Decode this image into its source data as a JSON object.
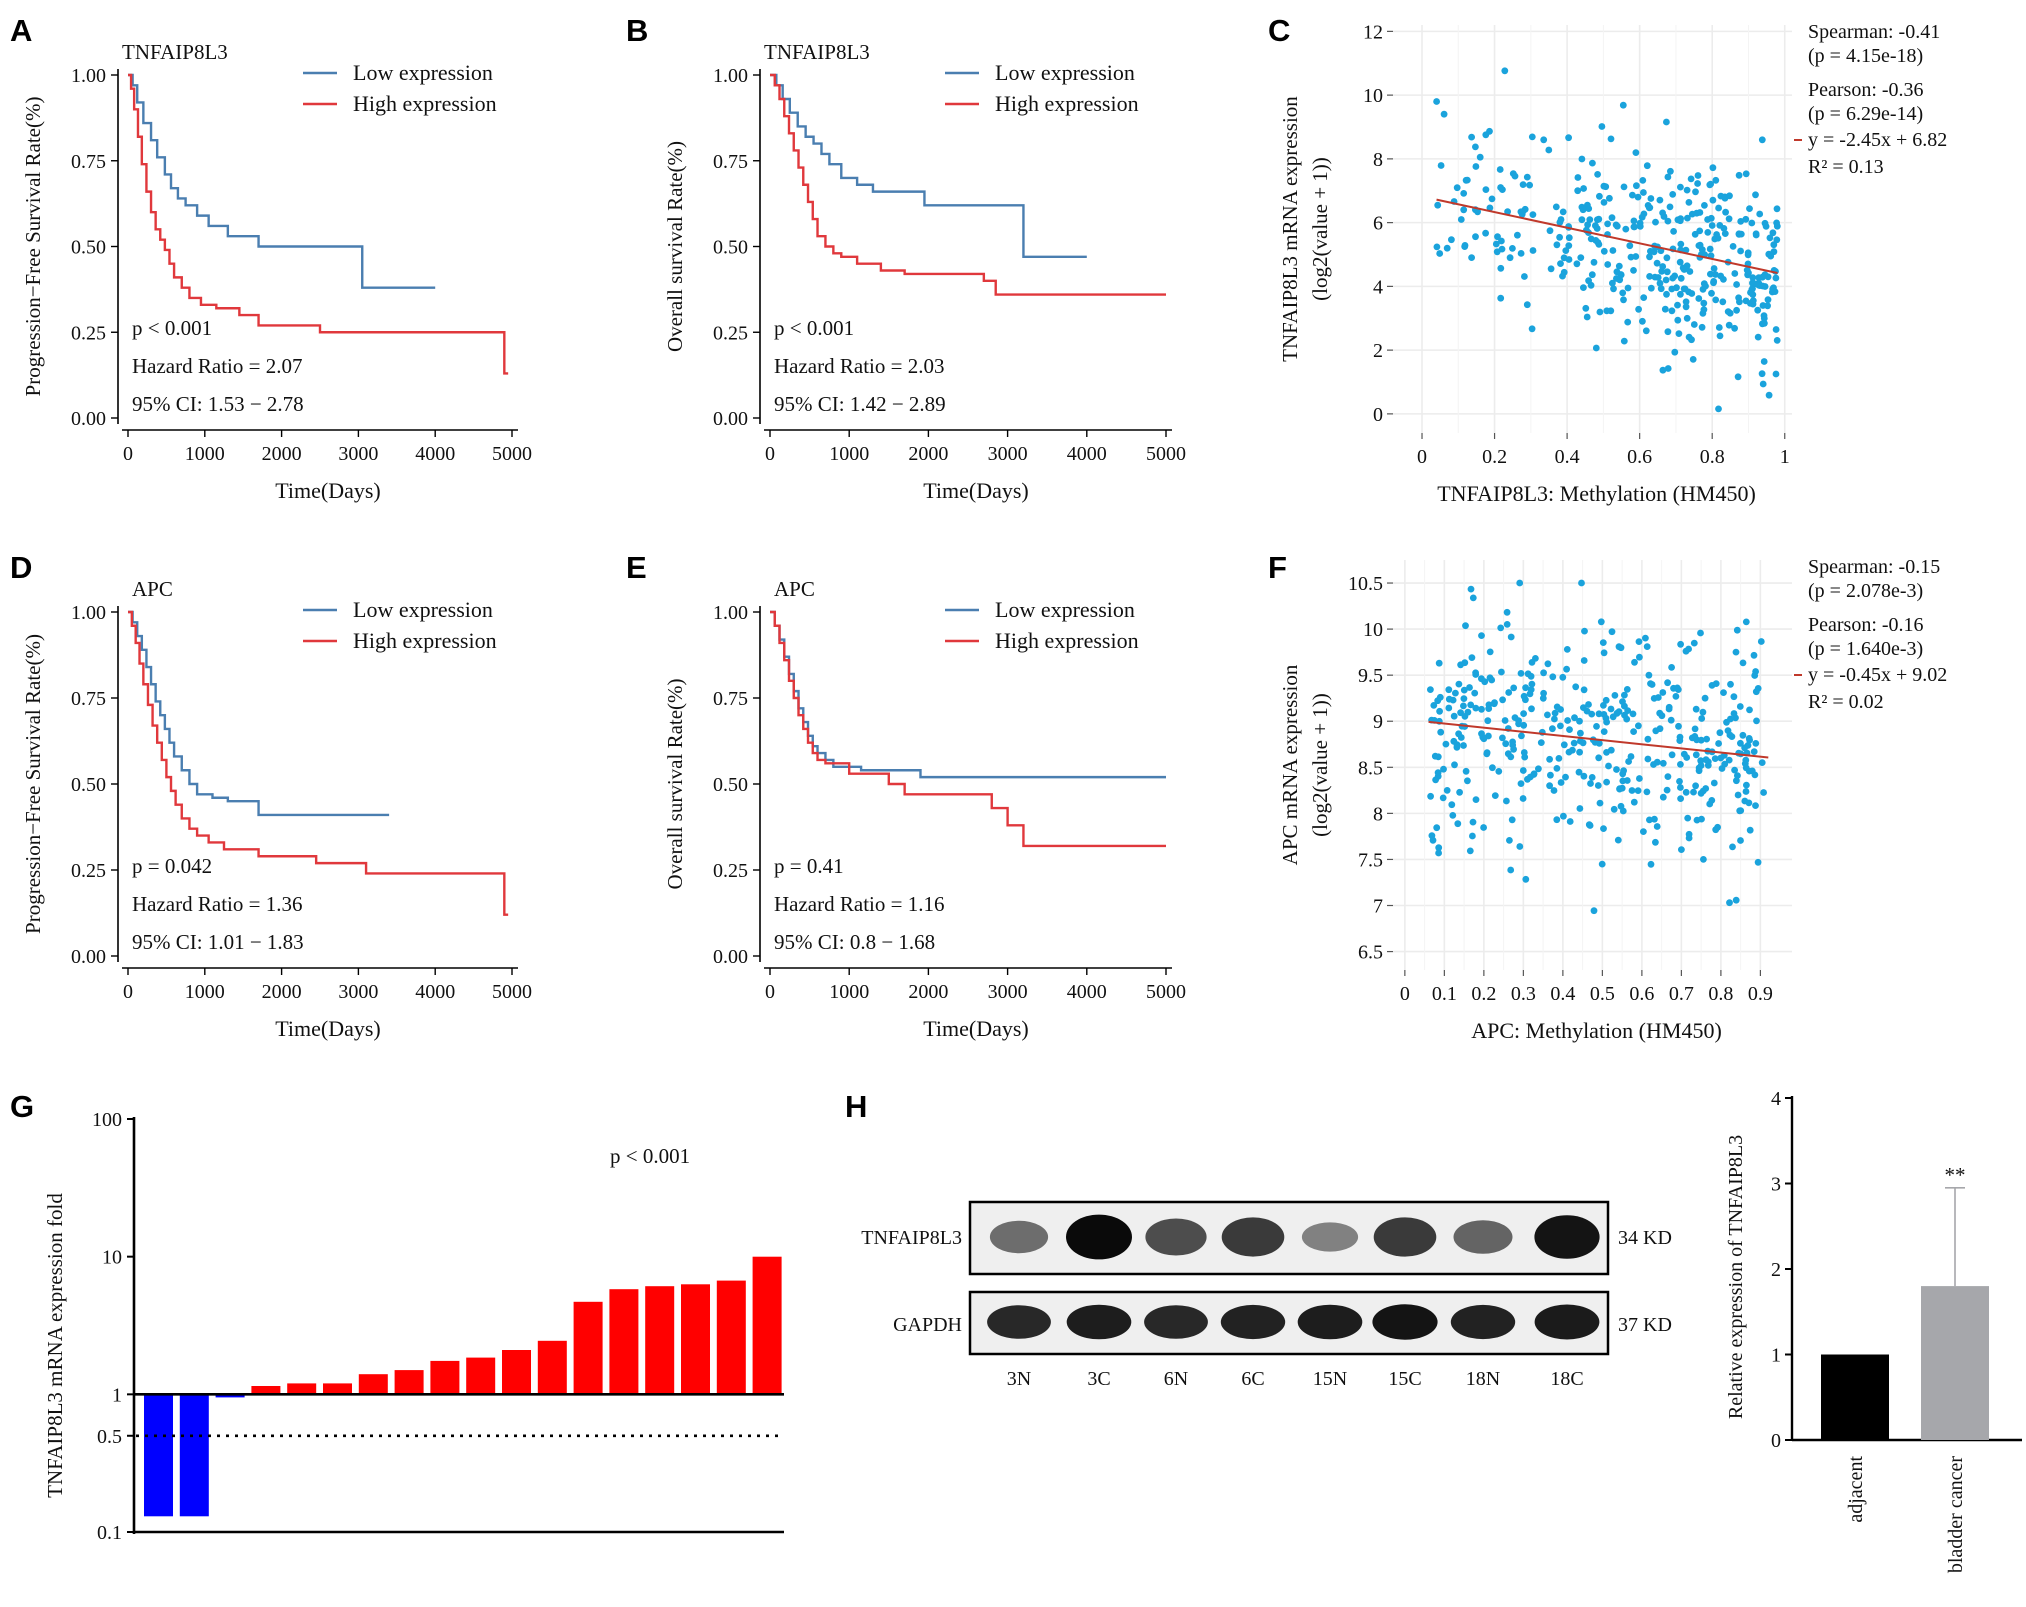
{
  "figure": {
    "panel_labels": [
      "A",
      "B",
      "C",
      "D",
      "E",
      "F",
      "G",
      "H"
    ],
    "legend_low": "Low expression",
    "legend_high": "High expression",
    "colors": {
      "low": "#4a7eb0",
      "high": "#e0383c",
      "scatter": "#1aa3dc",
      "fit": "#c0392b",
      "up_bar": "#ff0000",
      "down_bar": "#0000ff"
    }
  },
  "chart_data": [
    {
      "id": "A",
      "type": "line",
      "gene": "TNFAIP8L3",
      "xlabel": "Time(Days)",
      "ylabel": "Progression−Free Survival Rate(%)",
      "xlim": [
        0,
        5000
      ],
      "ylim": [
        0,
        1
      ],
      "xticks": [
        "0",
        "1000",
        "2000",
        "3000",
        "4000",
        "5000"
      ],
      "yticks": [
        "0.00",
        "0.25",
        "0.50",
        "0.75",
        "1.00"
      ],
      "stats": [
        "p < 0.001",
        "Hazard Ratio = 2.07",
        "95% CI: 1.53 − 2.78"
      ],
      "series": [
        {
          "name": "Low expression",
          "x": [
            0,
            60,
            120,
            200,
            300,
            380,
            480,
            560,
            650,
            750,
            900,
            1050,
            1300,
            1700,
            3050,
            3050,
            4000
          ],
          "y": [
            1.0,
            0.97,
            0.92,
            0.86,
            0.81,
            0.76,
            0.71,
            0.67,
            0.64,
            0.62,
            0.59,
            0.56,
            0.53,
            0.5,
            0.5,
            0.38,
            0.38
          ]
        },
        {
          "name": "High expression",
          "x": [
            0,
            40,
            80,
            130,
            180,
            240,
            300,
            360,
            420,
            480,
            540,
            600,
            700,
            800,
            950,
            1150,
            1450,
            1700,
            2500,
            3000,
            4900,
            4900,
            4950
          ],
          "y": [
            1.0,
            0.96,
            0.9,
            0.82,
            0.74,
            0.66,
            0.6,
            0.55,
            0.52,
            0.49,
            0.45,
            0.41,
            0.38,
            0.35,
            0.33,
            0.32,
            0.3,
            0.27,
            0.25,
            0.25,
            0.25,
            0.13,
            0.13
          ]
        }
      ]
    },
    {
      "id": "B",
      "type": "line",
      "gene": "TNFAIP8L3",
      "xlabel": "Time(Days)",
      "ylabel": "Overall survival Rate(%)",
      "xlim": [
        0,
        5000
      ],
      "ylim": [
        0,
        1
      ],
      "xticks": [
        "0",
        "1000",
        "2000",
        "3000",
        "4000",
        "5000"
      ],
      "yticks": [
        "0.00",
        "0.25",
        "0.50",
        "0.75",
        "1.00"
      ],
      "stats": [
        "p < 0.001",
        "Hazard Ratio = 2.03",
        "95% CI: 1.42 − 2.89"
      ],
      "series": [
        {
          "name": "Low expression",
          "x": [
            0,
            80,
            160,
            250,
            350,
            450,
            550,
            650,
            750,
            900,
            1100,
            1300,
            1950,
            3200,
            3200,
            4000
          ],
          "y": [
            1.0,
            0.97,
            0.93,
            0.89,
            0.85,
            0.82,
            0.8,
            0.77,
            0.74,
            0.7,
            0.68,
            0.66,
            0.62,
            0.62,
            0.47,
            0.47
          ]
        },
        {
          "name": "High expression",
          "x": [
            0,
            60,
            120,
            180,
            240,
            300,
            360,
            420,
            480,
            540,
            600,
            700,
            800,
            900,
            1100,
            1400,
            1700,
            2700,
            2850,
            5000
          ],
          "y": [
            1.0,
            0.97,
            0.93,
            0.88,
            0.83,
            0.78,
            0.73,
            0.68,
            0.63,
            0.58,
            0.53,
            0.5,
            0.48,
            0.47,
            0.45,
            0.43,
            0.42,
            0.4,
            0.36,
            0.36
          ]
        }
      ]
    },
    {
      "id": "C",
      "type": "scatter",
      "xlabel": "TNFAIP8L3: Methylation (HM450)",
      "ylabel": "TNFAIP8L3 mRNA expression",
      "ylabel2": "(log2(value + 1))",
      "xlim": [
        -0.08,
        1.02
      ],
      "ylim": [
        -0.6,
        12.2
      ],
      "xticks": [
        "0",
        "0.2",
        "0.4",
        "0.6",
        "0.8",
        "1"
      ],
      "xtick_values": [
        0,
        0.2,
        0.4,
        0.6,
        0.8,
        1
      ],
      "yticks": [
        "0",
        "2",
        "4",
        "6",
        "8",
        "10",
        "12"
      ],
      "ytick_values": [
        0,
        2,
        4,
        6,
        8,
        10,
        12
      ],
      "fit": {
        "slope": -2.45,
        "intercept": 6.82,
        "x_range": [
          0.04,
          0.98
        ]
      },
      "stats": [
        "Spearman: -0.41",
        "(p = 4.15e-18)",
        "Pearson: -0.36",
        "(p = 6.29e-14)",
        "y = -2.45x + 6.82",
        "R² = 0.13"
      ],
      "n_points": 400,
      "seed": 11,
      "noise_sd": 1.55,
      "x_skew": "high"
    },
    {
      "id": "D",
      "type": "line",
      "gene": "APC",
      "xlabel": "Time(Days)",
      "ylabel": "Progression−Free Survival Rate(%)",
      "xlim": [
        0,
        5000
      ],
      "ylim": [
        0,
        1
      ],
      "xticks": [
        "0",
        "1000",
        "2000",
        "3000",
        "4000",
        "5000"
      ],
      "yticks": [
        "0.00",
        "0.25",
        "0.50",
        "0.75",
        "1.00"
      ],
      "stats": [
        "p = 0.042",
        "Hazard Ratio = 1.36",
        "95% CI: 1.01 − 1.83"
      ],
      "series": [
        {
          "name": "Low expression",
          "x": [
            0,
            60,
            120,
            180,
            240,
            300,
            360,
            420,
            480,
            540,
            600,
            700,
            800,
            900,
            1100,
            1300,
            1700,
            3400
          ],
          "y": [
            1.0,
            0.97,
            0.93,
            0.89,
            0.84,
            0.79,
            0.74,
            0.7,
            0.66,
            0.62,
            0.58,
            0.54,
            0.5,
            0.47,
            0.46,
            0.45,
            0.41,
            0.41
          ]
        },
        {
          "name": "High expression",
          "x": [
            0,
            50,
            100,
            150,
            200,
            260,
            320,
            380,
            440,
            500,
            560,
            620,
            700,
            800,
            900,
            1050,
            1250,
            1700,
            2450,
            3100,
            4900,
            4900,
            4950
          ],
          "y": [
            1.0,
            0.96,
            0.91,
            0.85,
            0.79,
            0.73,
            0.67,
            0.62,
            0.57,
            0.52,
            0.48,
            0.44,
            0.4,
            0.37,
            0.35,
            0.33,
            0.31,
            0.29,
            0.27,
            0.24,
            0.24,
            0.12,
            0.12
          ]
        }
      ]
    },
    {
      "id": "E",
      "type": "line",
      "gene": "APC",
      "xlabel": "Time(Days)",
      "ylabel": "Overall survival Rate(%)",
      "xlim": [
        0,
        5000
      ],
      "ylim": [
        0,
        1
      ],
      "xticks": [
        "0",
        "1000",
        "2000",
        "3000",
        "4000",
        "5000"
      ],
      "yticks": [
        "0.00",
        "0.25",
        "0.50",
        "0.75",
        "1.00"
      ],
      "stats": [
        "p = 0.41",
        "Hazard Ratio = 1.16",
        "95% CI: 0.8 − 1.68"
      ],
      "series": [
        {
          "name": "Low expression",
          "x": [
            0,
            60,
            120,
            180,
            240,
            300,
            360,
            420,
            480,
            540,
            600,
            700,
            800,
            950,
            1150,
            1400,
            1900,
            5000
          ],
          "y": [
            1.0,
            0.96,
            0.92,
            0.87,
            0.82,
            0.77,
            0.72,
            0.68,
            0.64,
            0.61,
            0.59,
            0.57,
            0.55,
            0.55,
            0.54,
            0.54,
            0.52,
            0.52
          ]
        },
        {
          "name": "High expression",
          "x": [
            0,
            60,
            120,
            180,
            240,
            300,
            360,
            420,
            480,
            540,
            600,
            700,
            800,
            1000,
            1500,
            1700,
            2600,
            2800,
            3000,
            3200,
            5000
          ],
          "y": [
            1.0,
            0.96,
            0.91,
            0.86,
            0.8,
            0.75,
            0.7,
            0.66,
            0.62,
            0.59,
            0.57,
            0.56,
            0.56,
            0.53,
            0.5,
            0.47,
            0.47,
            0.43,
            0.38,
            0.32,
            0.32
          ]
        }
      ]
    },
    {
      "id": "F",
      "type": "scatter",
      "xlabel": "APC: Methylation (HM450)",
      "ylabel": "APC mRNA expression",
      "ylabel2": "(log2(value + 1))",
      "xlim": [
        -0.03,
        0.98
      ],
      "ylim": [
        6.3,
        10.75
      ],
      "xticks": [
        "0",
        "0.1",
        "0.2",
        "0.3",
        "0.4",
        "0.5",
        "0.6",
        "0.7",
        "0.8",
        "0.9"
      ],
      "xtick_values": [
        0,
        0.1,
        0.2,
        0.3,
        0.4,
        0.5,
        0.6,
        0.7,
        0.8,
        0.9
      ],
      "yticks": [
        "6.5",
        "7",
        "7.5",
        "8",
        "8.5",
        "9",
        "9.5",
        "10",
        "10.5"
      ],
      "ytick_values": [
        6.5,
        7,
        7.5,
        8,
        8.5,
        9,
        9.5,
        10,
        10.5
      ],
      "fit": {
        "slope": -0.45,
        "intercept": 9.02,
        "x_range": [
          0.06,
          0.92
        ]
      },
      "stats": [
        "Spearman: -0.15",
        "(p = 2.078e-3)",
        "Pearson: -0.16",
        "(p = 1.640e-3)",
        "y = -0.45x + 9.02",
        "R² = 0.02"
      ],
      "n_points": 420,
      "seed": 29,
      "noise_sd": 0.62,
      "x_skew": "uniform"
    },
    {
      "id": "G",
      "type": "bar",
      "ylabel": "TNFAIP8L3 mRNA expression fold",
      "scale": "log",
      "yticks": [
        "0.1",
        "0.5",
        "1",
        "10",
        "100"
      ],
      "ytick_values": [
        0.1,
        0.5,
        1,
        10,
        100
      ],
      "note": "p < 0.001",
      "values": [
        0.13,
        0.13,
        0.95,
        1.15,
        1.2,
        1.2,
        1.4,
        1.5,
        1.75,
        1.85,
        2.1,
        2.45,
        4.7,
        5.8,
        6.1,
        6.3,
        6.7,
        10.0
      ]
    },
    {
      "id": "H-bar",
      "type": "bar",
      "ylabel": "Relative expression of TNFAIP8L3",
      "categories": [
        "adjacent",
        "bladder cancer"
      ],
      "values": [
        1.0,
        1.8
      ],
      "error": [
        0,
        1.15
      ],
      "ylim": [
        0,
        4
      ],
      "yticks": [
        "0",
        "1",
        "2",
        "3",
        "4"
      ],
      "significance": "**",
      "bar_colors": [
        "#000000",
        "#a6a7ab"
      ]
    }
  ],
  "blot": {
    "rows": [
      {
        "name": "TNFAIP8L3",
        "kd": "34 KD",
        "intensities": [
          0.45,
          1.0,
          0.65,
          0.75,
          0.3,
          0.75,
          0.5,
          0.95
        ]
      },
      {
        "name": "GAPDH",
        "kd": "37 KD",
        "intensities": [
          0.85,
          0.9,
          0.85,
          0.88,
          0.9,
          0.95,
          0.88,
          0.92
        ]
      }
    ],
    "lanes": [
      "3N",
      "3C",
      "6N",
      "6C",
      "15N",
      "15C",
      "18N",
      "18C"
    ]
  }
}
